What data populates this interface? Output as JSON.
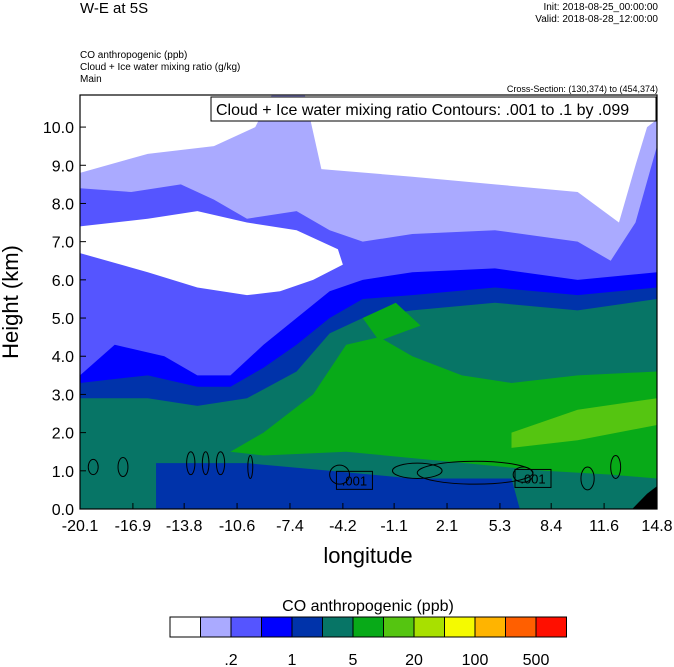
{
  "header": {
    "title": "W-E at 5S",
    "init": "Init: 2018-08-25_00:00:00",
    "valid": "Valid: 2018-08-28_12:00:00",
    "fields": [
      "CO anthropogenic   (ppb)",
      "Cloud + Ice water mixing ratio   (g/kg)",
      "Main"
    ],
    "cross_section": "Cross-Section: (130,374) to (454,374)"
  },
  "chart_data": {
    "type": "heatmap",
    "title": "W-E at 5S",
    "xlabel": "longitude",
    "ylabel": "Height (km)",
    "xlim": [
      -20.1,
      14.8
    ],
    "ylim": [
      0,
      10.84
    ],
    "xticks": [
      "-20.1",
      "-16.9",
      "-13.8",
      "-10.6",
      "-7.4",
      "-4.2",
      "-1.1",
      "2.1",
      "5.3",
      "8.4",
      "11.6",
      "14.8"
    ],
    "yticks": [
      "0.0",
      "1.0",
      "2.0",
      "3.0",
      "4.0",
      "5.0",
      "6.0",
      "7.0",
      "8.0",
      "9.0",
      "10.0"
    ],
    "contour_info": "Cloud + Ice water mixing ratio Contours: .001 to .1 by .099",
    "contour_labels": [
      {
        "text": ".001",
        "lon": -3.5,
        "h": 0.75
      },
      {
        "text": ".001",
        "lon": 7.3,
        "h": 0.8
      }
    ],
    "colorbar": {
      "title": "CO anthropogenic  (ppb)",
      "colors": [
        "#ffffff",
        "#aaaaff",
        "#5555ff",
        "#0000ff",
        "#0033aa",
        "#077566",
        "#08aa18",
        "#55c511",
        "#a8e000",
        "#f5fa00",
        "#ffb400",
        "#ff5f00",
        "#ff0f00"
      ],
      "labels": [
        ".2",
        "1",
        "5",
        "20",
        "100",
        "500"
      ]
    },
    "regions": [
      {
        "color": "#aaaaff",
        "top": [
          [
            -20.1,
            8.8
          ],
          [
            -16,
            9.3
          ],
          [
            -12,
            9.5
          ],
          [
            -9.5,
            10
          ],
          [
            -8.5,
            10.84
          ],
          [
            -6.5,
            10.84
          ],
          [
            -5.5,
            8.9
          ],
          [
            0,
            8.7
          ],
          [
            5,
            8.5
          ],
          [
            10,
            8.3
          ],
          [
            12.5,
            7.5
          ],
          [
            13.5,
            9
          ],
          [
            14.2,
            10
          ],
          [
            14.8,
            10.2
          ]
        ]
      },
      {
        "color": "#5555ff",
        "top": [
          [
            -20.1,
            8.4
          ],
          [
            -17,
            8.3
          ],
          [
            -14,
            8.5
          ],
          [
            -12,
            8.1
          ],
          [
            -10,
            7.6
          ],
          [
            -7,
            7.8
          ],
          [
            -5,
            7.3
          ],
          [
            -3,
            7
          ],
          [
            0,
            7.2
          ],
          [
            5,
            7.3
          ],
          [
            10,
            7
          ],
          [
            12,
            6.5
          ],
          [
            13.5,
            7.5
          ],
          [
            14.8,
            9.5
          ]
        ]
      },
      {
        "color": "#ffffff",
        "poly": [
          [
            -20.1,
            7.4
          ],
          [
            -16,
            7.6
          ],
          [
            -13,
            7.8
          ],
          [
            -10,
            7.5
          ],
          [
            -7,
            7.3
          ],
          [
            -4.5,
            6.8
          ],
          [
            -4.2,
            6.4
          ],
          [
            -6,
            6
          ],
          [
            -8,
            5.7
          ],
          [
            -10,
            5.6
          ],
          [
            -13,
            5.8
          ],
          [
            -16,
            6.2
          ],
          [
            -20.1,
            6.7
          ]
        ]
      },
      {
        "color": "#0000ff",
        "top": [
          [
            -20.1,
            3.5
          ],
          [
            -18,
            4.3
          ],
          [
            -15,
            4
          ],
          [
            -13,
            3.5
          ],
          [
            -11,
            3.5
          ],
          [
            -9,
            4.3
          ],
          [
            -7,
            5
          ],
          [
            -5,
            5.7
          ],
          [
            -3,
            6
          ],
          [
            0,
            6.2
          ],
          [
            5,
            6.3
          ],
          [
            10,
            6
          ],
          [
            14.8,
            6.2
          ]
        ]
      },
      {
        "color": "#0033aa",
        "top": [
          [
            -20.1,
            3.3
          ],
          [
            -16,
            3.5
          ],
          [
            -13,
            3.2
          ],
          [
            -11,
            3.2
          ],
          [
            -9,
            3.7
          ],
          [
            -7,
            4.3
          ],
          [
            -5,
            5
          ],
          [
            -3,
            5.5
          ],
          [
            0,
            5.6
          ],
          [
            5,
            5.8
          ],
          [
            10,
            5.6
          ],
          [
            14.8,
            5.8
          ]
        ]
      },
      {
        "color": "#077566",
        "top": [
          [
            -20.1,
            2.9
          ],
          [
            -16,
            2.9
          ],
          [
            -13,
            2.7
          ],
          [
            -10,
            2.9
          ],
          [
            -7,
            3.6
          ],
          [
            -5,
            4.6
          ],
          [
            -3,
            5
          ],
          [
            0,
            5.2
          ],
          [
            5,
            5.4
          ],
          [
            10,
            5.2
          ],
          [
            14.8,
            5.5
          ]
        ]
      },
      {
        "color": "#08aa18",
        "poly": [
          [
            -11,
            1.5
          ],
          [
            -9,
            2
          ],
          [
            -6,
            3
          ],
          [
            -4,
            4.3
          ],
          [
            -2,
            4.5
          ],
          [
            0,
            4
          ],
          [
            3,
            3.5
          ],
          [
            6,
            3.3
          ],
          [
            10,
            3.5
          ],
          [
            14.8,
            3.6
          ],
          [
            14.8,
            0.8
          ],
          [
            12,
            0.9
          ],
          [
            8,
            1
          ],
          [
            -4,
            1.5
          ],
          [
            -9,
            1.4
          ]
        ]
      },
      {
        "color": "#08aa18",
        "poly": [
          [
            -3,
            5
          ],
          [
            -1,
            5.4
          ],
          [
            0.5,
            4.8
          ],
          [
            -2,
            4.4
          ]
        ]
      },
      {
        "color": "#55c511",
        "poly": [
          [
            6,
            2
          ],
          [
            10,
            2.6
          ],
          [
            14.8,
            2.9
          ],
          [
            14.8,
            2.2
          ],
          [
            10,
            1.8
          ],
          [
            6,
            1.6
          ]
        ]
      },
      {
        "color": "#0033aa",
        "poly": [
          [
            -15.5,
            0
          ],
          [
            -15.5,
            1.2
          ],
          [
            -10,
            1.2
          ],
          [
            -5,
            1
          ],
          [
            0,
            0.8
          ],
          [
            6,
            0.8
          ],
          [
            6.5,
            0
          ]
        ]
      },
      {
        "color": "#000000",
        "poly": [
          [
            13.3,
            0
          ],
          [
            14.2,
            0.4
          ],
          [
            14.8,
            0.6
          ],
          [
            14.8,
            0
          ]
        ]
      }
    ],
    "contours": [
      [
        -19.3,
        1.1,
        0.3,
        0.2
      ],
      [
        -17.5,
        1.1,
        0.3,
        0.25
      ],
      [
        -13.4,
        1.2,
        0.25,
        0.3
      ],
      [
        -12.5,
        1.2,
        0.2,
        0.3
      ],
      [
        -11.6,
        1.2,
        0.25,
        0.3
      ],
      [
        -9.8,
        1.1,
        0.15,
        0.3
      ],
      [
        -4.4,
        0.9,
        0.6,
        0.25
      ],
      [
        3.8,
        0.95,
        3.5,
        0.3
      ],
      [
        0.3,
        1.0,
        1.5,
        0.2
      ],
      [
        6.7,
        0.9,
        0.6,
        0.2
      ],
      [
        10.6,
        0.8,
        0.4,
        0.3
      ],
      [
        12.3,
        1.1,
        0.3,
        0.3
      ]
    ]
  }
}
